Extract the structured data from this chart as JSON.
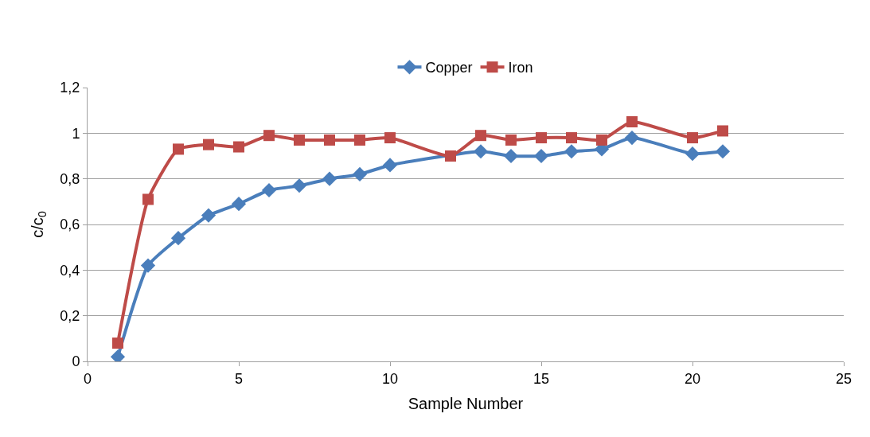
{
  "chart_data": {
    "type": "line",
    "xlabel": "Sample Number",
    "ylabel": "c/c$_{0}$",
    "x": [
      1,
      2,
      3,
      4,
      5,
      6,
      7,
      8,
      9,
      10,
      12,
      13,
      14,
      15,
      16,
      17,
      18,
      20,
      21
    ],
    "series": [
      {
        "name": "Copper",
        "color": "#4a7ebb",
        "marker": "diamond",
        "values": [
          0.02,
          0.42,
          0.54,
          0.64,
          0.69,
          0.75,
          0.77,
          0.8,
          0.82,
          0.86,
          null,
          0.92,
          0.9,
          0.9,
          0.92,
          0.93,
          0.98,
          0.91,
          0.92
        ]
      },
      {
        "name": "Iron",
        "color": "#be4b48",
        "marker": "square",
        "values": [
          0.08,
          0.71,
          0.93,
          0.95,
          0.94,
          0.99,
          0.97,
          0.97,
          0.97,
          0.98,
          0.9,
          0.99,
          0.97,
          0.98,
          0.98,
          0.97,
          1.05,
          0.98,
          1.01
        ]
      }
    ],
    "xlim": [
      0,
      25
    ],
    "xticks": [
      0,
      5,
      10,
      15,
      20,
      25
    ],
    "ylim": [
      0,
      1.2
    ],
    "yticks": [
      {
        "value": 0,
        "label": "0"
      },
      {
        "value": 0.2,
        "label": "0,2"
      },
      {
        "value": 0.4,
        "label": "0,4"
      },
      {
        "value": 0.6,
        "label": "0,6"
      },
      {
        "value": 0.8,
        "label": "0,8"
      },
      {
        "value": 1,
        "label": "1"
      },
      {
        "value": 1.2,
        "label": "1,2"
      }
    ],
    "grid": "y",
    "legend": "top",
    "line_style": "solid"
  }
}
